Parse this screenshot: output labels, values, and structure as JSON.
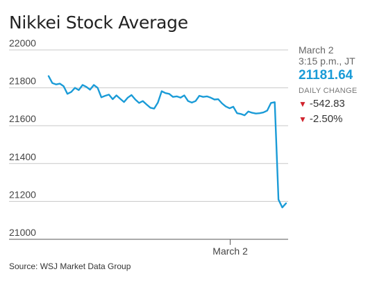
{
  "title": "Nikkei Stock Average",
  "source": "Source: WSJ Market Data Group",
  "info": {
    "date": "March 2",
    "time": "3:15 p.m., JT",
    "value": "21181.64",
    "change_label": "DAILY CHANGE",
    "change_points": "-542.83",
    "change_percent": "-2.50%",
    "down_icon": "down-triangle-icon",
    "down_color": "#d0222c"
  },
  "chart_data": {
    "type": "line",
    "title": "Nikkei Stock Average",
    "xlabel": "",
    "ylabel": "",
    "ylim": [
      21000,
      22000
    ],
    "yticks": [
      21000,
      21200,
      21400,
      21600,
      21800,
      22000
    ],
    "xticks": [
      {
        "label": "March 2",
        "index": 48
      }
    ],
    "grid": true,
    "line_color": "#1a9bd7",
    "series": [
      {
        "values": [
          21862,
          21825,
          21818,
          21822,
          21808,
          21768,
          21778,
          21800,
          21788,
          21815,
          21805,
          21790,
          21815,
          21800,
          21750,
          21758,
          21764,
          21740,
          21760,
          21742,
          21725,
          21748,
          21762,
          21738,
          21720,
          21730,
          21712,
          21695,
          21690,
          21722,
          21782,
          21772,
          21768,
          21752,
          21755,
          21748,
          21760,
          21730,
          21722,
          21730,
          21758,
          21752,
          21755,
          21748,
          21738,
          21740,
          21718,
          21702,
          21692,
          21700,
          21666,
          21662,
          21655,
          21675,
          21668,
          21664,
          21666,
          21670,
          21680,
          21720,
          21724,
          21210,
          21168,
          21190
        ]
      }
    ]
  }
}
